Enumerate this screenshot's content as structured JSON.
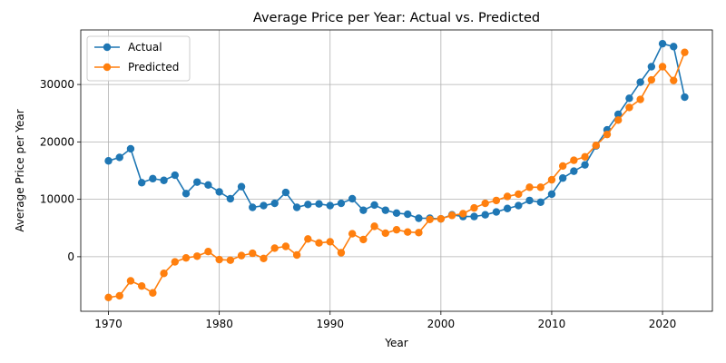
{
  "chart_data": {
    "type": "line",
    "title": "Average Price per Year: Actual vs. Predicted",
    "xlabel": "Year",
    "ylabel": "Average Price per Year",
    "xlim": [
      1967.5,
      2024.5
    ],
    "ylim": [
      -9500,
      39500
    ],
    "xticks": [
      1970,
      1980,
      1990,
      2000,
      2010,
      2020
    ],
    "yticks": [
      0,
      10000,
      20000,
      30000
    ],
    "grid": true,
    "legend_position": "upper-left",
    "x": [
      1970,
      1971,
      1972,
      1973,
      1974,
      1975,
      1976,
      1977,
      1978,
      1979,
      1980,
      1981,
      1982,
      1983,
      1984,
      1985,
      1986,
      1987,
      1988,
      1989,
      1990,
      1991,
      1992,
      1993,
      1994,
      1995,
      1996,
      1997,
      1998,
      1999,
      2000,
      2001,
      2002,
      2003,
      2004,
      2005,
      2006,
      2007,
      2008,
      2009,
      2010,
      2011,
      2012,
      2013,
      2014,
      2015,
      2016,
      2017,
      2018,
      2019,
      2020,
      2021,
      2022
    ],
    "series": [
      {
        "name": "Actual",
        "color": "#1f77b4",
        "marker": "circle",
        "values": [
          16700,
          17300,
          18800,
          12900,
          13600,
          13300,
          14200,
          11000,
          13000,
          12500,
          11300,
          10100,
          12200,
          8600,
          8900,
          9300,
          11200,
          8600,
          9100,
          9200,
          8900,
          9300,
          10100,
          8100,
          9000,
          8100,
          7600,
          7400,
          6700,
          6700,
          6600,
          7300,
          7000,
          7000,
          7300,
          7800,
          8400,
          8900,
          9800,
          9500,
          10900,
          13700,
          14900,
          16000,
          19300,
          22100,
          24800,
          27600,
          30400,
          33100,
          37100,
          36600,
          27800
        ]
      },
      {
        "name": "Predicted",
        "color": "#ff7f0e",
        "marker": "circle",
        "values": [
          -7100,
          -6800,
          -4200,
          -5100,
          -6300,
          -2900,
          -900,
          -200,
          100,
          900,
          -500,
          -600,
          200,
          600,
          -300,
          1500,
          1800,
          300,
          3100,
          2400,
          2600,
          700,
          4000,
          3000,
          5300,
          4100,
          4700,
          4300,
          4200,
          6500,
          6600,
          7200,
          7500,
          8500,
          9300,
          9800,
          10500,
          10900,
          12100,
          12100,
          13400,
          15800,
          16800,
          17400,
          19400,
          21300,
          23800,
          26000,
          27400,
          30800,
          33100,
          30700,
          35600
        ]
      }
    ]
  }
}
